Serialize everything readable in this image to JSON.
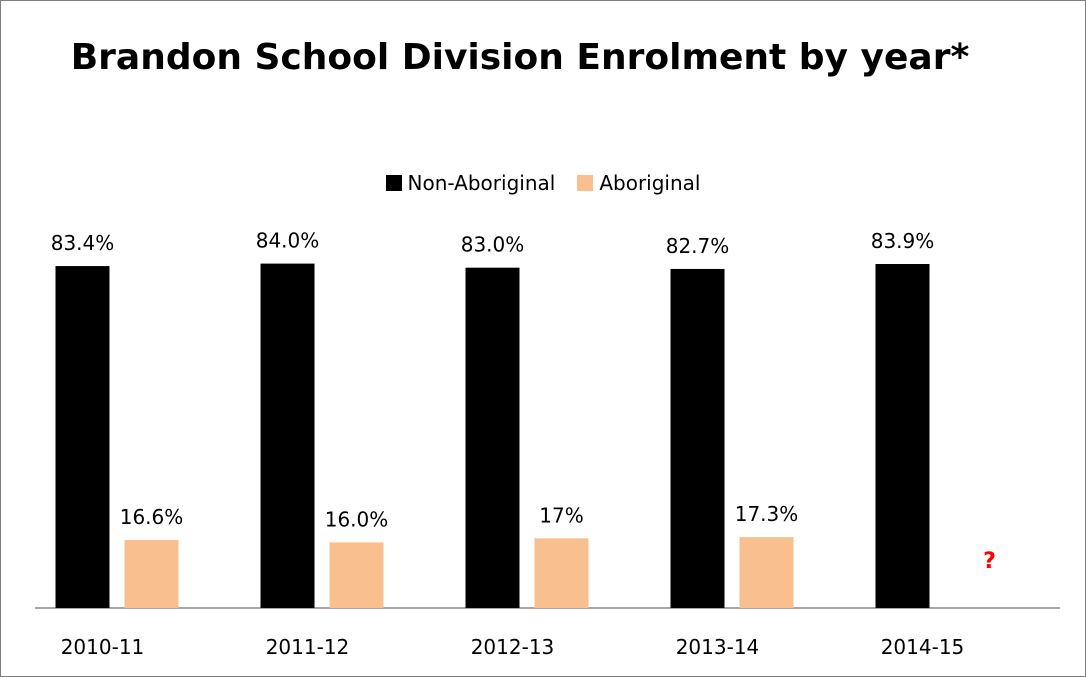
{
  "chart_data": {
    "type": "bar",
    "title": "Brandon School Division Enrolment by year*",
    "categories": [
      "2010-11",
      "2011-12",
      "2012-13",
      "2013-14",
      "2014-15"
    ],
    "series": [
      {
        "name": "Non-Aboriginal",
        "color": "#000000",
        "values": [
          83.4,
          84.0,
          83.0,
          82.7,
          83.9
        ],
        "labels": [
          "83.4%",
          "84.0%",
          "83.0%",
          "82.7%",
          "83.9%"
        ]
      },
      {
        "name": "Aboriginal",
        "color": "#f9bf8f",
        "values": [
          16.6,
          16.0,
          17,
          17.3,
          null
        ],
        "labels": [
          "16.6%",
          "16.0%",
          "17%",
          "17.3%",
          "?"
        ]
      }
    ],
    "ylim": [
      0,
      100
    ],
    "grid": false,
    "legend_position": "top-center",
    "annotation_color": "#ff0000"
  }
}
